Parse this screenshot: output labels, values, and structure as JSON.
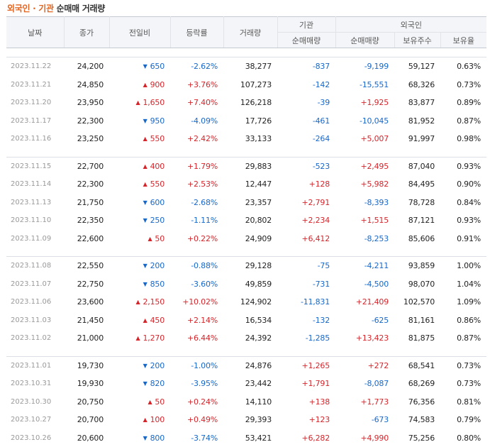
{
  "title": {
    "highlight": "외국인 · 기관",
    "rest": "순매매 거래량"
  },
  "headers": {
    "date": "날짜",
    "close": "종가",
    "change": "전일비",
    "rate": "등락률",
    "volume": "거래량",
    "institution": "기관",
    "foreign": "외국인",
    "inst_net": "순매매량",
    "frgn_net": "순매매량",
    "holdings": "보유주수",
    "ratio": "보유율"
  },
  "groups": [
    [
      {
        "date": "2023.11.22",
        "close": "24,200",
        "dir": "down",
        "change": "650",
        "rate": "-2.62%",
        "volume": "38,277",
        "inst": "-837",
        "frgn": "-9,199",
        "hold": "59,127",
        "ratio": "0.63%"
      },
      {
        "date": "2023.11.21",
        "close": "24,850",
        "dir": "up",
        "change": "900",
        "rate": "+3.76%",
        "volume": "107,273",
        "inst": "-142",
        "frgn": "-15,551",
        "hold": "68,326",
        "ratio": "0.73%"
      },
      {
        "date": "2023.11.20",
        "close": "23,950",
        "dir": "up",
        "change": "1,650",
        "rate": "+7.40%",
        "volume": "126,218",
        "inst": "-39",
        "frgn": "+1,925",
        "hold": "83,877",
        "ratio": "0.89%"
      },
      {
        "date": "2023.11.17",
        "close": "22,300",
        "dir": "down",
        "change": "950",
        "rate": "-4.09%",
        "volume": "17,726",
        "inst": "-461",
        "frgn": "-10,045",
        "hold": "81,952",
        "ratio": "0.87%"
      },
      {
        "date": "2023.11.16",
        "close": "23,250",
        "dir": "up",
        "change": "550",
        "rate": "+2.42%",
        "volume": "33,133",
        "inst": "-264",
        "frgn": "+5,007",
        "hold": "91,997",
        "ratio": "0.98%"
      }
    ],
    [
      {
        "date": "2023.11.15",
        "close": "22,700",
        "dir": "up",
        "change": "400",
        "rate": "+1.79%",
        "volume": "29,883",
        "inst": "-523",
        "frgn": "+2,495",
        "hold": "87,040",
        "ratio": "0.93%"
      },
      {
        "date": "2023.11.14",
        "close": "22,300",
        "dir": "up",
        "change": "550",
        "rate": "+2.53%",
        "volume": "12,447",
        "inst": "+128",
        "frgn": "+5,982",
        "hold": "84,495",
        "ratio": "0.90%"
      },
      {
        "date": "2023.11.13",
        "close": "21,750",
        "dir": "down",
        "change": "600",
        "rate": "-2.68%",
        "volume": "23,357",
        "inst": "+2,791",
        "frgn": "-8,393",
        "hold": "78,728",
        "ratio": "0.84%"
      },
      {
        "date": "2023.11.10",
        "close": "22,350",
        "dir": "down",
        "change": "250",
        "rate": "-1.11%",
        "volume": "20,802",
        "inst": "+2,234",
        "frgn": "+1,515",
        "hold": "87,121",
        "ratio": "0.93%"
      },
      {
        "date": "2023.11.09",
        "close": "22,600",
        "dir": "up",
        "change": "50",
        "rate": "+0.22%",
        "volume": "24,909",
        "inst": "+6,412",
        "frgn": "-8,253",
        "hold": "85,606",
        "ratio": "0.91%"
      }
    ],
    [
      {
        "date": "2023.11.08",
        "close": "22,550",
        "dir": "down",
        "change": "200",
        "rate": "-0.88%",
        "volume": "29,128",
        "inst": "-75",
        "frgn": "-4,211",
        "hold": "93,859",
        "ratio": "1.00%"
      },
      {
        "date": "2023.11.07",
        "close": "22,750",
        "dir": "down",
        "change": "850",
        "rate": "-3.60%",
        "volume": "49,859",
        "inst": "-731",
        "frgn": "-4,500",
        "hold": "98,070",
        "ratio": "1.04%"
      },
      {
        "date": "2023.11.06",
        "close": "23,600",
        "dir": "up",
        "change": "2,150",
        "rate": "+10.02%",
        "volume": "124,902",
        "inst": "-11,831",
        "frgn": "+21,409",
        "hold": "102,570",
        "ratio": "1.09%"
      },
      {
        "date": "2023.11.03",
        "close": "21,450",
        "dir": "up",
        "change": "450",
        "rate": "+2.14%",
        "volume": "16,534",
        "inst": "-132",
        "frgn": "-625",
        "hold": "81,161",
        "ratio": "0.86%"
      },
      {
        "date": "2023.11.02",
        "close": "21,000",
        "dir": "up",
        "change": "1,270",
        "rate": "+6.44%",
        "volume": "24,392",
        "inst": "-1,285",
        "frgn": "+13,423",
        "hold": "81,875",
        "ratio": "0.87%"
      }
    ],
    [
      {
        "date": "2023.11.01",
        "close": "19,730",
        "dir": "down",
        "change": "200",
        "rate": "-1.00%",
        "volume": "24,876",
        "inst": "+1,265",
        "frgn": "+272",
        "hold": "68,541",
        "ratio": "0.73%"
      },
      {
        "date": "2023.10.31",
        "close": "19,930",
        "dir": "down",
        "change": "820",
        "rate": "-3.95%",
        "volume": "23,442",
        "inst": "+1,791",
        "frgn": "-8,087",
        "hold": "68,269",
        "ratio": "0.73%"
      },
      {
        "date": "2023.10.30",
        "close": "20,750",
        "dir": "up",
        "change": "50",
        "rate": "+0.24%",
        "volume": "14,110",
        "inst": "+138",
        "frgn": "+1,773",
        "hold": "76,356",
        "ratio": "0.81%"
      },
      {
        "date": "2023.10.27",
        "close": "20,700",
        "dir": "up",
        "change": "100",
        "rate": "+0.49%",
        "volume": "29,393",
        "inst": "+123",
        "frgn": "-673",
        "hold": "74,583",
        "ratio": "0.79%"
      },
      {
        "date": "2023.10.26",
        "close": "20,600",
        "dir": "down",
        "change": "800",
        "rate": "-3.74%",
        "volume": "53,421",
        "inst": "+6,282",
        "frgn": "+4,990",
        "hold": "75,256",
        "ratio": "0.80%"
      }
    ]
  ],
  "icons": {
    "up": "triangle-up-icon",
    "down": "triangle-down-icon"
  },
  "colors": {
    "up": "#d5252b",
    "down": "#1768c9",
    "title_accent": "#e4641e"
  }
}
